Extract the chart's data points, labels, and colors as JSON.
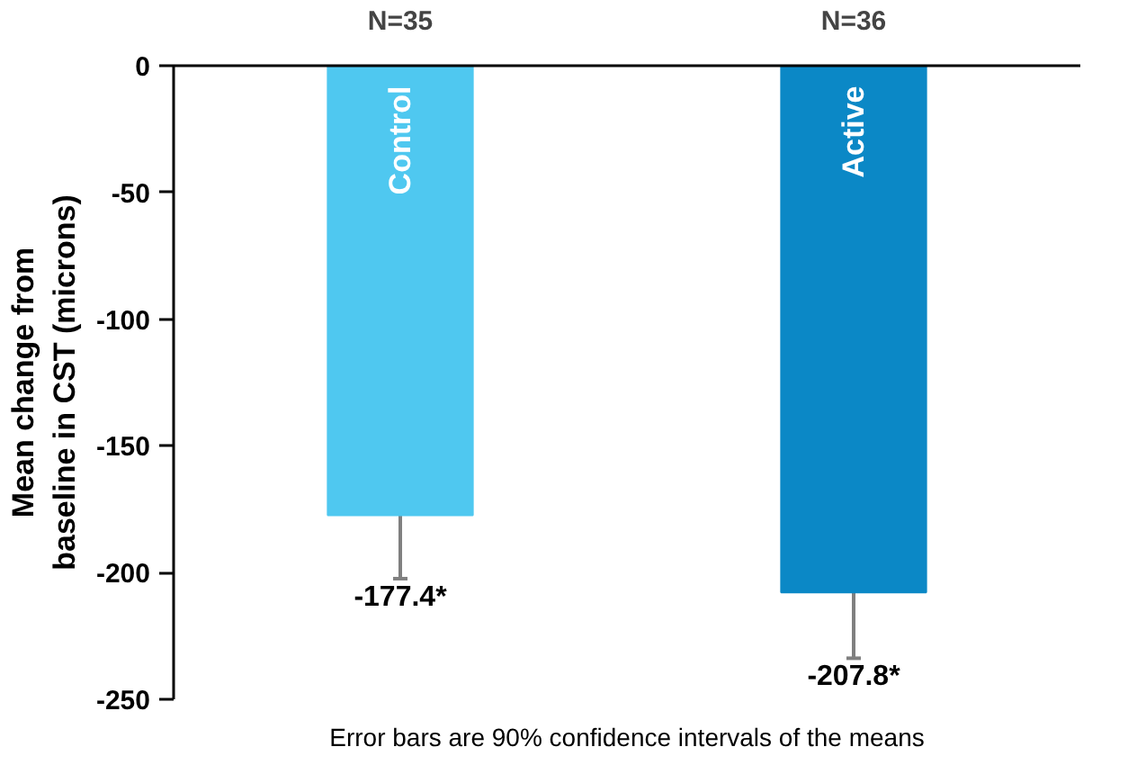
{
  "chart_data": {
    "type": "bar",
    "ylabel": "Mean change from\nbaseline in CST (microns)",
    "categories": [
      "Control",
      "Active"
    ],
    "values": [
      -177.4,
      -207.8
    ],
    "colors": [
      "#4fc8f0",
      "#0b88c6"
    ],
    "errors": [
      25,
      26
    ],
    "value_labels": [
      "-177.4*",
      "-207.8*"
    ],
    "annotations": [
      "N=35",
      "N=36",
      "Error bars are 90% confidence intervals of the means"
    ],
    "ylim": [
      -250,
      0
    ],
    "yticks": [
      {
        "value": 0,
        "label": "0"
      },
      -50,
      -100,
      -150,
      -200,
      -250
    ],
    "grid": false
  }
}
